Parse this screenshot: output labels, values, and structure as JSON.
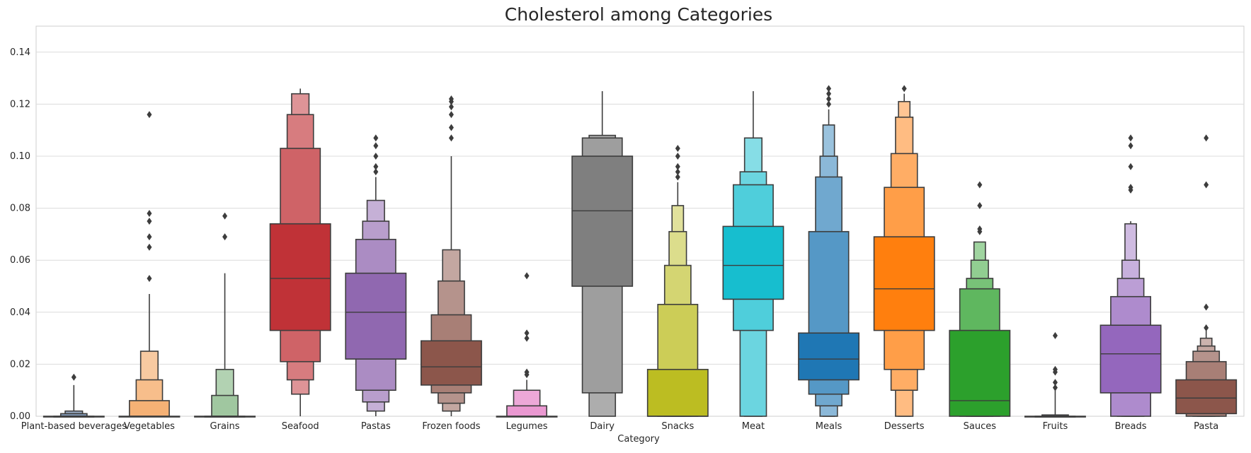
{
  "chart_data": {
    "type": "boxen",
    "title": "Cholesterol among Categories",
    "xlabel": "Category",
    "ylabel": "",
    "ylim": [
      0,
      0.15
    ],
    "yticks": [
      "0.00",
      "0.02",
      "0.04",
      "0.06",
      "0.08",
      "0.10",
      "0.12",
      "0.14"
    ],
    "grid": true,
    "categories": [
      "Plant-based beverages",
      "Vegetables",
      "Grains",
      "Seafood",
      "Pastas",
      "Frozen foods",
      "Legumes",
      "Dairy",
      "Snacks",
      "Meat",
      "Meals",
      "Desserts",
      "Sauces",
      "Fruits",
      "Breads",
      "Pasta"
    ],
    "series": [
      {
        "category": "Plant-based beverages",
        "color": "#3a5e8c",
        "median": 0.0,
        "levels": [
          [
            0.0,
            0.0
          ],
          [
            0.0,
            0.0
          ],
          [
            0.0,
            0.001
          ],
          [
            0.0,
            0.002
          ]
        ],
        "whisker": [
          0.0,
          0.012
        ],
        "outliers": [
          0.015
        ]
      },
      {
        "category": "Vegetables",
        "color": "#f2994a",
        "median": 0.0,
        "levels": [
          [
            0.0,
            0.0
          ],
          [
            0.0,
            0.006
          ],
          [
            0.0,
            0.014
          ],
          [
            0.0,
            0.025
          ]
        ],
        "whisker": [
          0.0,
          0.047
        ],
        "outliers": [
          0.053,
          0.065,
          0.069,
          0.075,
          0.078,
          0.116
        ]
      },
      {
        "category": "Grains",
        "color": "#6aa86a",
        "median": 0.0,
        "levels": [
          [
            0.0,
            0.0
          ],
          [
            0.0,
            0.0
          ],
          [
            0.0,
            0.008
          ],
          [
            0.0,
            0.018
          ]
        ],
        "whisker": [
          0.0,
          0.055
        ],
        "outliers": [
          0.069,
          0.077
        ]
      },
      {
        "category": "Seafood",
        "color": "#c03237",
        "median": 0.053,
        "levels": [
          [
            0.033,
            0.074
          ],
          [
            0.021,
            0.103
          ],
          [
            0.014,
            0.116
          ],
          [
            0.0085,
            0.124
          ]
        ],
        "whisker": [
          0.0,
          0.126
        ],
        "outliers": []
      },
      {
        "category": "Pastas",
        "color": "#9068b0",
        "median": 0.04,
        "levels": [
          [
            0.022,
            0.055
          ],
          [
            0.01,
            0.068
          ],
          [
            0.0055,
            0.075
          ],
          [
            0.002,
            0.083
          ]
        ],
        "whisker": [
          0.0,
          0.092
        ],
        "outliers": [
          0.094,
          0.096,
          0.1,
          0.104,
          0.107
        ]
      },
      {
        "category": "Frozen foods",
        "color": "#8c564b",
        "median": 0.019,
        "levels": [
          [
            0.012,
            0.029
          ],
          [
            0.009,
            0.039
          ],
          [
            0.005,
            0.052
          ],
          [
            0.002,
            0.064
          ]
        ],
        "whisker": [
          0.0,
          0.1
        ],
        "outliers": [
          0.107,
          0.111,
          0.116,
          0.119,
          0.121,
          0.122
        ]
      },
      {
        "category": "Legumes",
        "color": "#e377c2",
        "median": 0.0,
        "levels": [
          [
            0.0,
            0.0
          ],
          [
            0.0,
            0.004
          ],
          [
            0.0,
            0.01
          ]
        ],
        "whisker": [
          0.0,
          0.014
        ],
        "outliers": [
          0.016,
          0.017,
          0.03,
          0.032,
          0.054
        ]
      },
      {
        "category": "Dairy",
        "color": "#7f7f7f",
        "median": 0.079,
        "levels": [
          [
            0.05,
            0.1
          ],
          [
            0.009,
            0.107
          ],
          [
            0.0,
            0.108
          ]
        ],
        "whisker": [
          0.0,
          0.125
        ],
        "outliers": []
      },
      {
        "category": "Snacks",
        "color": "#bcbd22",
        "median": 0.0,
        "levels": [
          [
            0.0,
            0.018
          ],
          [
            0.0,
            0.043
          ],
          [
            0.0,
            0.058
          ],
          [
            0.0,
            0.071
          ],
          [
            0.0,
            0.081
          ]
        ],
        "whisker": [
          0.0,
          0.09
        ],
        "outliers": [
          0.092,
          0.094,
          0.096,
          0.1,
          0.103
        ]
      },
      {
        "category": "Meat",
        "color": "#17becf",
        "median": 0.058,
        "levels": [
          [
            0.045,
            0.073
          ],
          [
            0.033,
            0.089
          ],
          [
            0.0,
            0.094
          ],
          [
            0.0,
            0.107
          ]
        ],
        "whisker": [
          0.0,
          0.125
        ],
        "outliers": []
      },
      {
        "category": "Meals",
        "color": "#1f77b4",
        "median": 0.022,
        "levels": [
          [
            0.014,
            0.032
          ],
          [
            0.0085,
            0.071
          ],
          [
            0.004,
            0.092
          ],
          [
            0.0,
            0.1
          ],
          [
            0.0,
            0.112
          ]
        ],
        "whisker": [
          0.0,
          0.118
        ],
        "outliers": [
          0.12,
          0.122,
          0.124,
          0.126
        ]
      },
      {
        "category": "Desserts",
        "color": "#ff7f0e",
        "median": 0.049,
        "levels": [
          [
            0.033,
            0.069
          ],
          [
            0.018,
            0.088
          ],
          [
            0.01,
            0.101
          ],
          [
            0.0,
            0.115
          ],
          [
            0.0,
            0.121
          ]
        ],
        "whisker": [
          0.0,
          0.124
        ],
        "outliers": [
          0.126
        ]
      },
      {
        "category": "Sauces",
        "color": "#2ca02c",
        "median": 0.006,
        "levels": [
          [
            0.0,
            0.033
          ],
          [
            0.0,
            0.049
          ],
          [
            0.0,
            0.053
          ],
          [
            0.0,
            0.06
          ],
          [
            0.0,
            0.067
          ]
        ],
        "whisker": [
          0.0,
          0.067
        ],
        "outliers": [
          0.071,
          0.072,
          0.081,
          0.089
        ]
      },
      {
        "category": "Fruits",
        "color": "#3a5e8c",
        "median": 0.0,
        "levels": [
          [
            0.0,
            0.0
          ],
          [
            0.0,
            0.0
          ],
          [
            0.0,
            0.0005
          ]
        ],
        "whisker": [
          0.0,
          0.01
        ],
        "outliers": [
          0.011,
          0.013,
          0.017,
          0.018,
          0.031
        ]
      },
      {
        "category": "Breads",
        "color": "#9467bd",
        "median": 0.024,
        "levels": [
          [
            0.009,
            0.035
          ],
          [
            0.0,
            0.046
          ],
          [
            0.0,
            0.053
          ],
          [
            0.0,
            0.06
          ],
          [
            0.0,
            0.074
          ]
        ],
        "whisker": [
          0.0,
          0.075
        ],
        "outliers": [
          0.087,
          0.088,
          0.096,
          0.104,
          0.107
        ]
      },
      {
        "category": "Pasta",
        "color": "#8c564b",
        "median": 0.007,
        "levels": [
          [
            0.001,
            0.014
          ],
          [
            0.0,
            0.021
          ],
          [
            0.0,
            0.025
          ],
          [
            0.0,
            0.027
          ],
          [
            0.0,
            0.03
          ]
        ],
        "whisker": [
          0.0,
          0.033
        ],
        "outliers": [
          0.034,
          0.042,
          0.089,
          0.107
        ]
      }
    ]
  }
}
